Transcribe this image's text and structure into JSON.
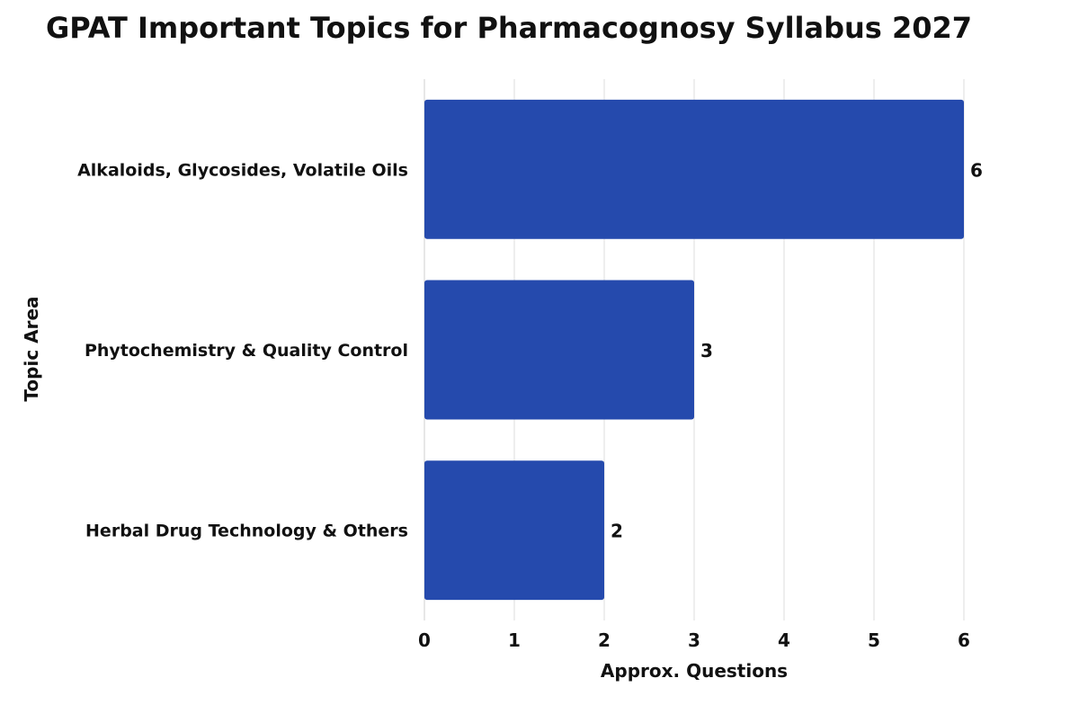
{
  "chart_data": {
    "type": "bar",
    "orientation": "horizontal",
    "title": "GPAT Important Topics for Pharmacognosy Syllabus 2027",
    "xlabel": "Approx. Questions",
    "ylabel": "Topic Area",
    "categories": [
      "Alkaloids, Glycosides, Volatile Oils",
      "Phytochemistry & Quality Control",
      "Herbal Drug Technology & Others"
    ],
    "values": [
      6,
      3,
      2
    ],
    "xlim": [
      0,
      6
    ],
    "xticks": [
      0,
      1,
      2,
      3,
      4,
      5,
      6
    ],
    "grid": true,
    "legend": "none",
    "bar_color": "#254aad"
  }
}
